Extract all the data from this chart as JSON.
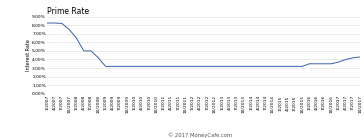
{
  "title": "Prime Rate",
  "ylabel": "Interest Rate",
  "copyright": "© 2017 MoneyCafe.com",
  "background_color": "#ffffff",
  "grid_color": "#dddddd",
  "line_color": "#3a5faa",
  "title_fontsize": 5.5,
  "label_fontsize": 3.5,
  "tick_fontsize": 3.2,
  "copyright_fontsize": 3.8,
  "ylim": [
    0.0,
    0.09
  ],
  "yticks": [
    0.0,
    0.01,
    0.02,
    0.03,
    0.04,
    0.05,
    0.06,
    0.07,
    0.08,
    0.09
  ],
  "ytick_labels": [
    "0.00%",
    "1.00%",
    "2.00%",
    "3.00%",
    "4.00%",
    "5.00%",
    "6.00%",
    "7.00%",
    "8.00%",
    "9.00%"
  ],
  "data": [
    [
      "1/2007",
      0.0825
    ],
    [
      "4/2007",
      0.0825
    ],
    [
      "7/2007",
      0.082
    ],
    [
      "10/2007",
      0.075
    ],
    [
      "1/2008",
      0.065
    ],
    [
      "4/2008",
      0.05
    ],
    [
      "7/2008",
      0.05
    ],
    [
      "10/2008",
      0.042
    ],
    [
      "1/2009",
      0.032
    ],
    [
      "4/2009",
      0.032
    ],
    [
      "7/2009",
      0.032
    ],
    [
      "10/2009",
      0.032
    ],
    [
      "1/2010",
      0.032
    ],
    [
      "4/2010",
      0.032
    ],
    [
      "7/2010",
      0.032
    ],
    [
      "10/2010",
      0.032
    ],
    [
      "1/2011",
      0.032
    ],
    [
      "4/2011",
      0.032
    ],
    [
      "7/2011",
      0.032
    ],
    [
      "10/2011",
      0.032
    ],
    [
      "1/2012",
      0.032
    ],
    [
      "4/2012",
      0.032
    ],
    [
      "7/2012",
      0.032
    ],
    [
      "10/2012",
      0.032
    ],
    [
      "1/2013",
      0.032
    ],
    [
      "4/2013",
      0.032
    ],
    [
      "7/2013",
      0.032
    ],
    [
      "10/2013",
      0.032
    ],
    [
      "1/2014",
      0.032
    ],
    [
      "4/2014",
      0.032
    ],
    [
      "7/2014",
      0.032
    ],
    [
      "10/2014",
      0.032
    ],
    [
      "1/2015",
      0.032
    ],
    [
      "4/2015",
      0.032
    ],
    [
      "7/2015",
      0.032
    ],
    [
      "10/2015",
      0.032
    ],
    [
      "1/2016",
      0.035
    ],
    [
      "4/2016",
      0.035
    ],
    [
      "7/2016",
      0.035
    ],
    [
      "10/2016",
      0.035
    ],
    [
      "1/2017",
      0.037
    ],
    [
      "4/2017",
      0.04
    ],
    [
      "7/2017",
      0.042
    ],
    [
      "10/2017",
      0.043
    ]
  ]
}
